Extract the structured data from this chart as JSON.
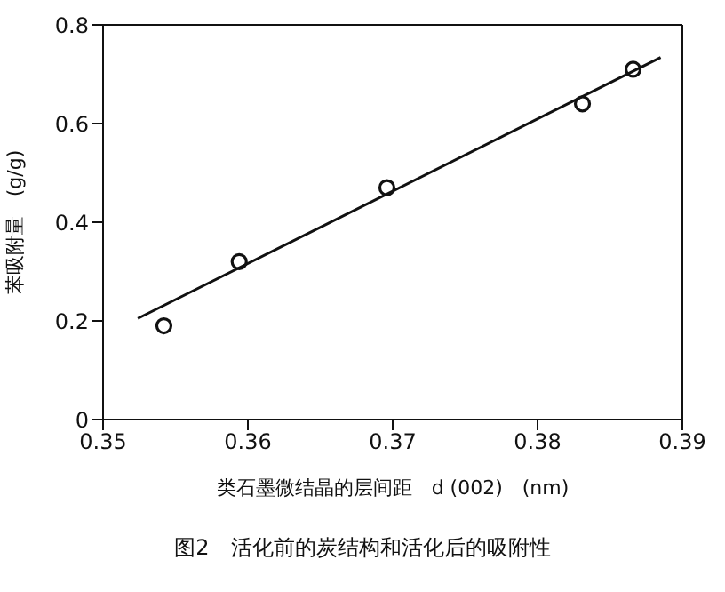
{
  "chart_data": {
    "type": "scatter",
    "title": "图2　活化前的炭结构和活化后的吸附性",
    "xlabel": "类石墨微结晶的层间距　d (002)　(nm)",
    "ylabel": "苯吸附量　(g/g)",
    "xlim": [
      0.35,
      0.39
    ],
    "xticks": [
      0.35,
      0.36,
      0.37,
      0.38,
      0.39
    ],
    "ylim": [
      0,
      0.8
    ],
    "yticks": [
      0,
      0.2,
      0.4,
      0.6,
      0.8
    ],
    "grid": false,
    "legend": false,
    "series": [
      {
        "color": "#111111",
        "marker": "circle",
        "x": [
          0.3542,
          0.3594,
          0.3696,
          0.3831,
          0.3866
        ],
        "values": [
          0.19,
          0.32,
          0.47,
          0.64,
          0.71
        ]
      },
      {
        "type": "line",
        "color": "#111111",
        "marker": "none",
        "x": [
          0.3524,
          0.3885
        ],
        "values": [
          0.205,
          0.734
        ]
      }
    ]
  }
}
